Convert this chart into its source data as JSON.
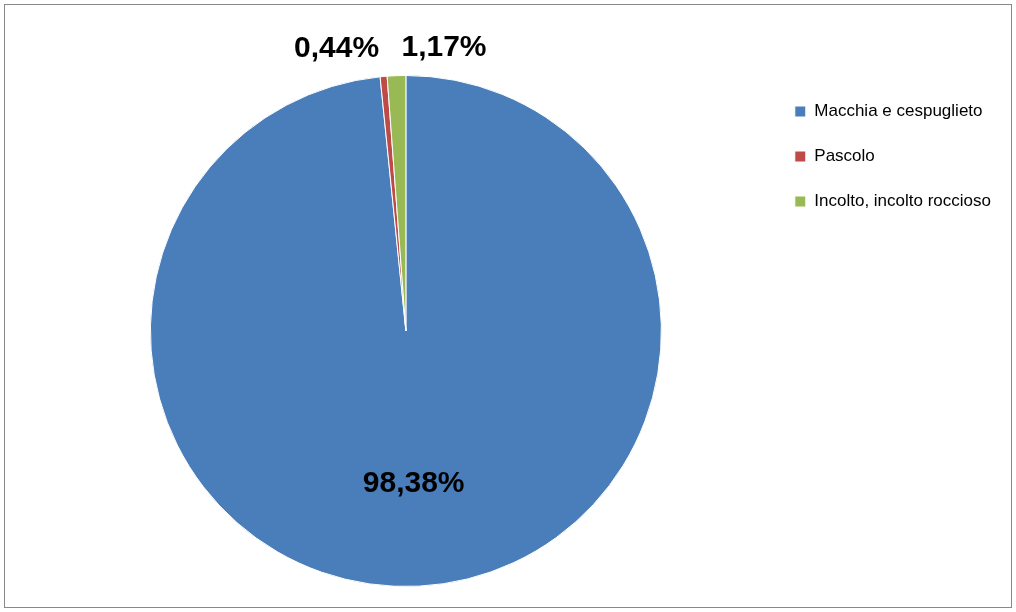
{
  "chart_data": {
    "type": "pie",
    "categories": [
      "Macchia e cespuglieto",
      "Pascolo",
      "Incolto, incolto roccioso"
    ],
    "values": [
      98.38,
      0.44,
      1.17
    ],
    "colors": [
      "#4a7ebb",
      "#be4b48",
      "#98b954"
    ],
    "value_labels": [
      "98,38%",
      "0,44%",
      "1,17%"
    ],
    "legend": "top right"
  }
}
